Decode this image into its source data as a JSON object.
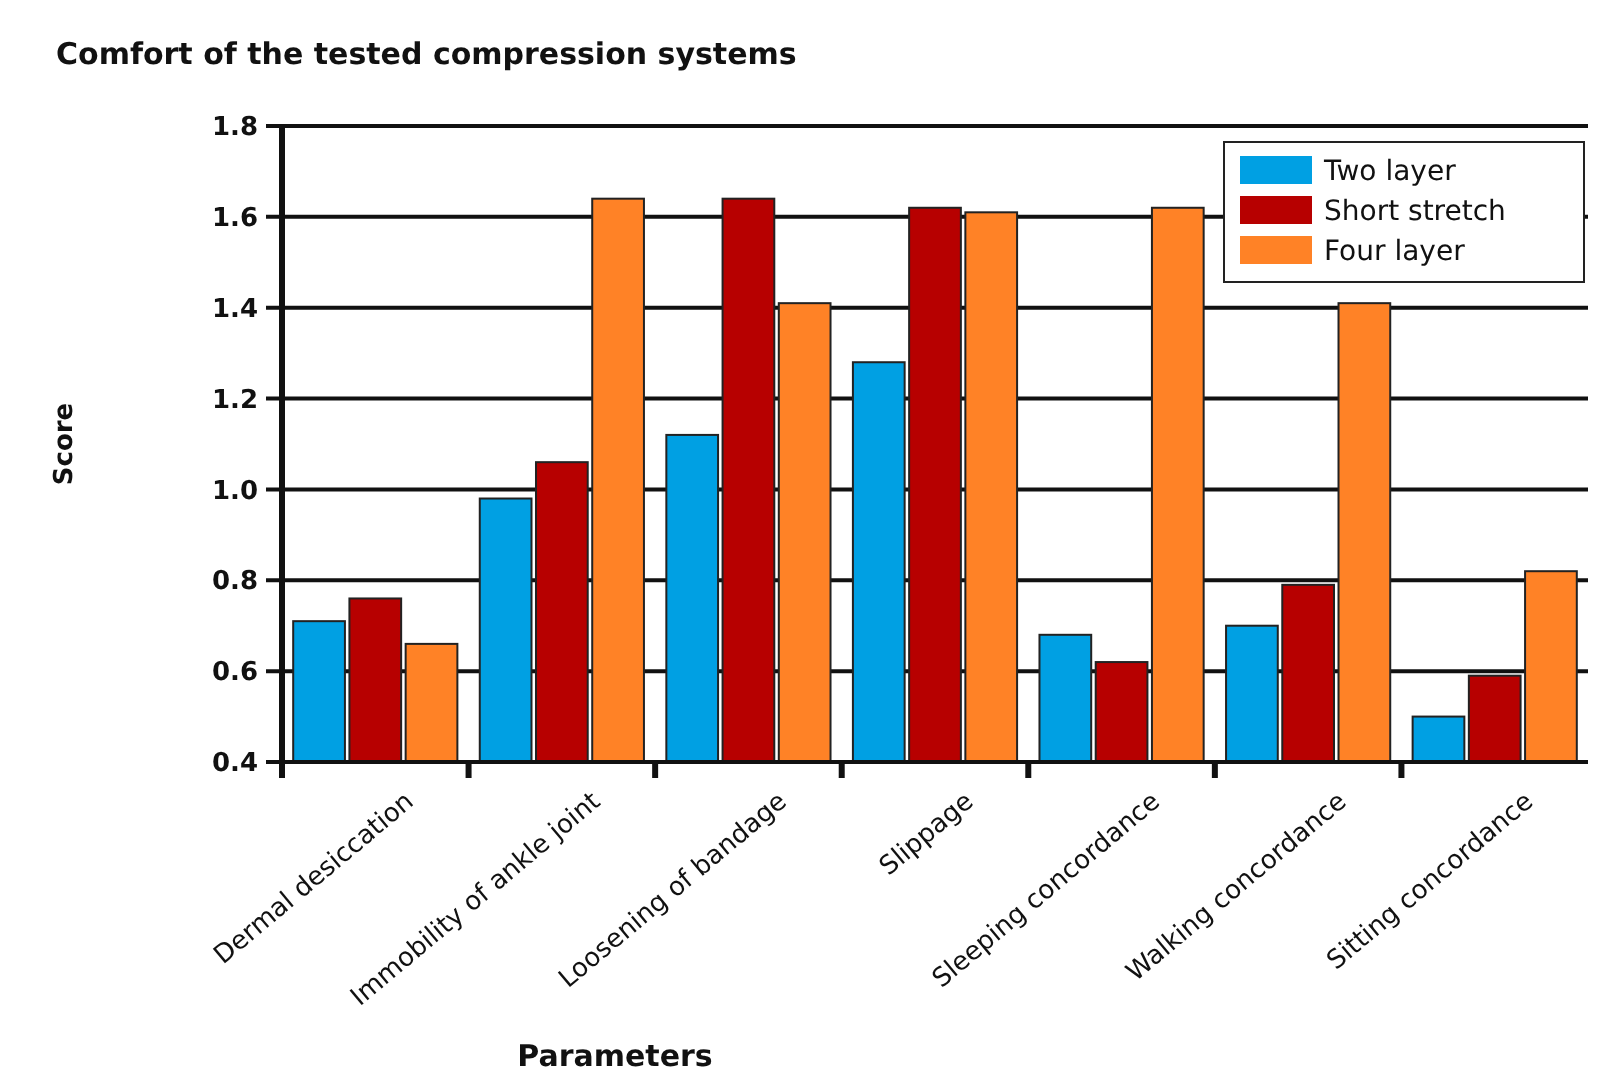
{
  "chart_data": {
    "type": "bar",
    "title": "Comfort of the tested compression systems",
    "xlabel": "Parameters",
    "ylabel": "Score",
    "categories": [
      "Dermal desiccation",
      "Immobility of ankle joint",
      "Loosening of bandage",
      "Slippage",
      "Sleeping concordance",
      "Walking concordance",
      "Sitting concordance"
    ],
    "series": [
      {
        "name": "Two layer",
        "color": "#00a0e3",
        "values": [
          0.71,
          0.98,
          1.12,
          1.28,
          0.68,
          0.7,
          0.5
        ]
      },
      {
        "name": "Short stretch",
        "color": "#b70000",
        "values": [
          0.76,
          1.06,
          1.64,
          1.62,
          0.62,
          0.79,
          0.59
        ]
      },
      {
        "name": "Four layer",
        "color": "#ff8226",
        "values": [
          0.66,
          1.64,
          1.41,
          1.61,
          1.62,
          1.41,
          0.82
        ]
      }
    ],
    "ylim": [
      0.4,
      1.8
    ],
    "yticks": [
      {
        "value": 0.4,
        "label": "0.4"
      },
      {
        "value": 0.6,
        "label": "0.6"
      },
      {
        "value": 0.8,
        "label": "0.8"
      },
      {
        "value": 1.0,
        "label": "1.0"
      },
      {
        "value": 1.2,
        "label": "1.2"
      },
      {
        "value": 1.4,
        "label": "1.4"
      },
      {
        "value": 1.6,
        "label": "1.6"
      },
      {
        "value": 1.8,
        "label": "1.8"
      }
    ],
    "grid": "y",
    "legend": "top right"
  }
}
